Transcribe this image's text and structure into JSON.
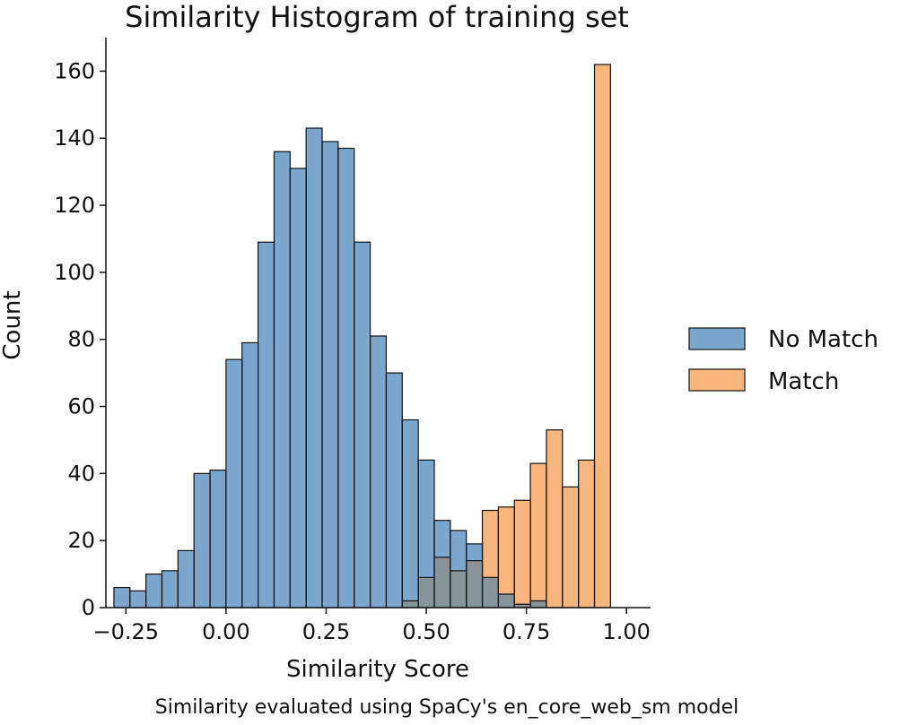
{
  "chart_data": {
    "type": "bar",
    "title": "Similarity Histogram of training set",
    "xlabel": "Similarity Score",
    "ylabel": "Count",
    "caption": "Similarity evaluated using SpaCy's en_core_web_sm model",
    "xlim": [
      -0.3,
      1.06
    ],
    "ylim": [
      0,
      170
    ],
    "xticks": [
      -0.25,
      0.0,
      0.25,
      0.5,
      0.75,
      1.0
    ],
    "xtick_labels": [
      "−0.25",
      "0.00",
      "0.25",
      "0.50",
      "0.75",
      "1.00"
    ],
    "yticks": [
      0,
      20,
      40,
      60,
      80,
      100,
      120,
      140,
      160
    ],
    "ytick_labels": [
      "0",
      "20",
      "40",
      "60",
      "80",
      "100",
      "120",
      "140",
      "160"
    ],
    "bin_start": -0.28,
    "bin_width": 0.04,
    "series": [
      {
        "name": "No Match",
        "color": "#7ba7cf",
        "values": [
          6,
          5,
          10,
          11,
          17,
          40,
          41,
          74,
          79,
          109,
          136,
          131,
          143,
          139,
          137,
          109,
          81,
          70,
          56,
          44,
          26,
          23,
          19,
          9,
          4,
          1,
          2,
          0
        ]
      },
      {
        "name": "Match",
        "color": "#f8b67d",
        "values": [
          0,
          0,
          0,
          0,
          0,
          0,
          0,
          0,
          0,
          0,
          0,
          0,
          0,
          0,
          0,
          0,
          0,
          0,
          2,
          9,
          15,
          11,
          14,
          29,
          30,
          32,
          43,
          53,
          36,
          44,
          162
        ]
      }
    ],
    "overlap_color": "#87959b",
    "legend": {
      "placement": "right",
      "entries": [
        "No Match",
        "Match"
      ]
    }
  }
}
